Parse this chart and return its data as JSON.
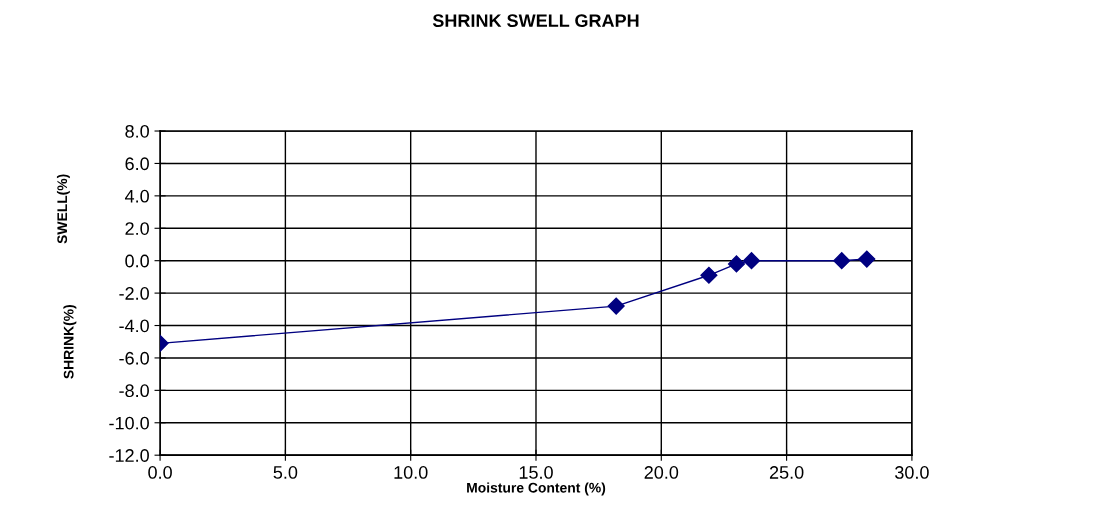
{
  "chart_data": {
    "type": "line",
    "title": "SHRINK SWELL GRAPH",
    "xlabel": "Moisture Content (%)",
    "ylabel": "SWELL(%)",
    "annotations": [
      "SHRINK(%)"
    ],
    "x": [
      0.0,
      18.2,
      21.9,
      23.0,
      23.6,
      27.2,
      28.2
    ],
    "series": [
      {
        "color": "#000080",
        "values": [
          -5.1,
          -2.8,
          -0.9,
          -0.2,
          0.0,
          0.0,
          0.1
        ]
      }
    ],
    "xlim": [
      0,
      30
    ],
    "xticks": [
      {
        "value": 0,
        "label": "0.0"
      },
      {
        "value": 5,
        "label": "5.0"
      },
      {
        "value": 10,
        "label": "10.0"
      },
      {
        "value": 15,
        "label": "15.0"
      },
      {
        "value": 20,
        "label": "20.0"
      },
      {
        "value": 25,
        "label": "25.0"
      },
      {
        "value": 30,
        "label": "30.0"
      }
    ],
    "ylim": [
      -12,
      8
    ],
    "yticks": [
      {
        "value": -12,
        "label": "-12.0"
      },
      {
        "value": -10,
        "label": "-10.0"
      },
      {
        "value": -8,
        "label": "-8.0"
      },
      {
        "value": -6,
        "label": "-6.0"
      },
      {
        "value": -4,
        "label": "-4.0"
      },
      {
        "value": -2,
        "label": "-2.0"
      },
      {
        "value": 0,
        "label": "0.0"
      },
      {
        "value": 2,
        "label": "2.0"
      },
      {
        "value": 4,
        "label": "4.0"
      },
      {
        "value": 6,
        "label": "6.0"
      },
      {
        "value": 8,
        "label": "8.0"
      }
    ],
    "grid": true,
    "marker": "diamond",
    "line_style": "solid"
  }
}
